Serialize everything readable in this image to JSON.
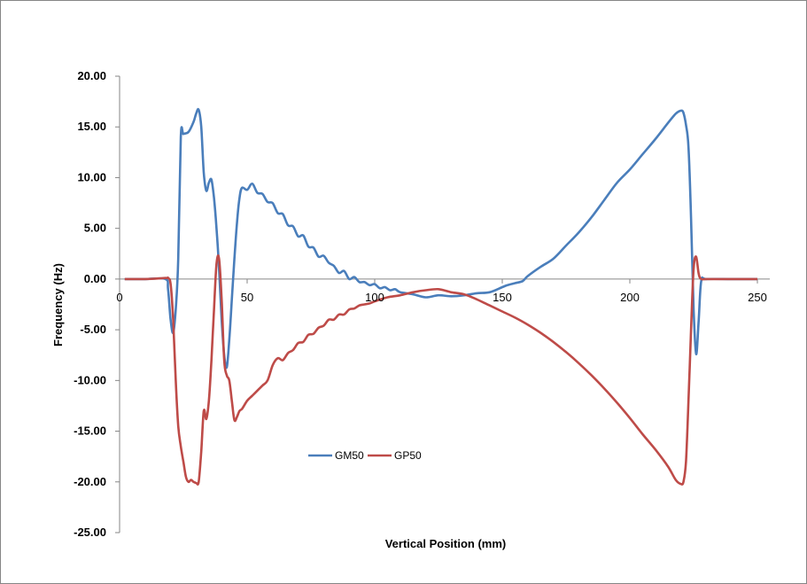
{
  "chart_data": {
    "type": "line",
    "title": "",
    "xlabel": "Vertical Position (mm)",
    "ylabel": "Frequency (Hz)",
    "xlim": [
      0,
      250
    ],
    "ylim": [
      -25,
      20
    ],
    "x_ticks": [
      "0",
      "50",
      "100",
      "150",
      "200",
      "250"
    ],
    "y_ticks": [
      "20.00",
      "15.00",
      "10.00",
      "5.00",
      "0.00",
      "-5.00",
      "-10.00",
      "-15.00",
      "-20.00",
      "-25.00"
    ],
    "grid": false,
    "legend_position": "bottom-left",
    "series": [
      {
        "name": "GM50",
        "color": "#4A7EBB",
        "x": [
          2,
          10,
          18,
          19,
          20,
          21,
          22,
          23,
          24,
          25,
          27,
          29,
          30,
          31,
          32,
          33,
          34,
          35,
          36,
          37,
          38,
          39,
          40,
          41,
          42,
          43,
          44,
          45,
          46,
          47,
          48,
          50,
          52,
          54,
          56,
          58,
          60,
          62,
          64,
          66,
          68,
          70,
          72,
          74,
          76,
          78,
          80,
          82,
          84,
          86,
          88,
          90,
          92,
          94,
          96,
          98,
          100,
          102,
          104,
          106,
          108,
          110,
          115,
          120,
          125,
          130,
          135,
          140,
          145,
          150,
          152,
          155,
          158,
          160,
          165,
          170,
          175,
          180,
          185,
          190,
          195,
          200,
          205,
          210,
          215,
          218,
          220,
          221,
          222,
          223,
          224,
          225,
          226,
          227,
          228,
          230,
          240,
          250
        ],
        "values": [
          0,
          0,
          0,
          -1,
          -4,
          -5.3,
          -3,
          2,
          14,
          14.3,
          14.5,
          15.5,
          16.3,
          16.7,
          15,
          10.5,
          8.7,
          9.5,
          9.8,
          8,
          5,
          1,
          -4,
          -7.5,
          -8.7,
          -6,
          -2,
          2,
          5.5,
          8,
          9,
          8.8,
          9.4,
          8.5,
          8.4,
          7.6,
          7.5,
          6.5,
          6.4,
          5.3,
          5.2,
          4.2,
          4.3,
          3.2,
          3.1,
          2.2,
          2.3,
          1.6,
          1.3,
          0.6,
          0.8,
          0,
          0.2,
          -0.3,
          -0.3,
          -0.6,
          -0.5,
          -0.9,
          -0.8,
          -1.1,
          -1,
          -1.3,
          -1.5,
          -1.8,
          -1.6,
          -1.7,
          -1.6,
          -1.4,
          -1.3,
          -0.8,
          -0.6,
          -0.4,
          -0.2,
          0.3,
          1.2,
          2,
          3.3,
          4.6,
          6.1,
          7.8,
          9.5,
          10.8,
          12.3,
          13.8,
          15.4,
          16.3,
          16.6,
          16.4,
          15.2,
          13,
          6,
          -3,
          -7.4,
          -4,
          -0.2,
          0,
          0,
          0
        ]
      },
      {
        "name": "GP50",
        "color": "#BE4B48",
        "x": [
          2,
          10,
          18,
          19,
          20,
          21,
          22,
          23,
          24,
          25,
          26,
          27,
          28,
          29,
          30,
          31,
          32,
          33,
          34,
          35,
          36,
          37,
          38,
          39,
          40,
          41,
          42,
          43,
          44,
          45,
          46,
          47,
          48,
          50,
          52,
          54,
          56,
          58,
          60,
          62,
          64,
          66,
          68,
          70,
          72,
          74,
          76,
          78,
          80,
          82,
          84,
          86,
          88,
          90,
          92,
          94,
          96,
          98,
          100,
          105,
          110,
          115,
          120,
          125,
          130,
          135,
          140,
          145,
          150,
          155,
          160,
          165,
          170,
          175,
          180,
          185,
          190,
          195,
          200,
          205,
          210,
          215,
          218,
          220,
          221,
          222,
          223,
          224,
          225,
          226,
          227,
          228,
          230,
          240,
          250
        ],
        "values": [
          0,
          0,
          0.1,
          0.1,
          -0.5,
          -4,
          -10,
          -14.5,
          -16.5,
          -18,
          -19.5,
          -20,
          -19.8,
          -20,
          -20.1,
          -20,
          -17,
          -13,
          -13.8,
          -12,
          -8,
          -3,
          1.5,
          2,
          -2,
          -8,
          -9.5,
          -10,
          -12,
          -13.9,
          -13.6,
          -13,
          -12.8,
          -12,
          -11.5,
          -11,
          -10.5,
          -10,
          -8.5,
          -7.8,
          -8,
          -7.3,
          -7,
          -6.3,
          -6.2,
          -5.5,
          -5.4,
          -4.8,
          -4.6,
          -4,
          -4,
          -3.5,
          -3.5,
          -3,
          -2.9,
          -2.6,
          -2.5,
          -2.4,
          -2.2,
          -1.8,
          -1.6,
          -1.3,
          -1.1,
          -1,
          -1.3,
          -1.5,
          -2,
          -2.6,
          -3.2,
          -3.8,
          -4.5,
          -5.3,
          -6.2,
          -7.2,
          -8.3,
          -9.5,
          -10.8,
          -12.2,
          -13.7,
          -15.3,
          -16.8,
          -18.5,
          -19.8,
          -20.2,
          -20,
          -18,
          -12,
          -5,
          1,
          2.2,
          0.5,
          0,
          0,
          0,
          0
        ]
      }
    ]
  }
}
